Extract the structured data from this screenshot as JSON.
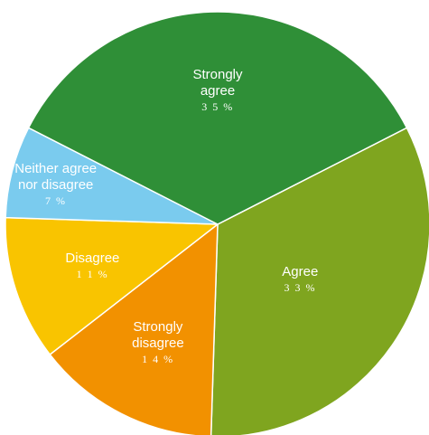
{
  "chart_data": {
    "type": "pie",
    "title": "",
    "start_angle_deg": -27,
    "direction": "clockwise",
    "slices": [
      {
        "key": "agree",
        "label_lines": [
          "Agree"
        ],
        "value": 33,
        "value_label": "3 3 %",
        "color": "#7fa51f"
      },
      {
        "key": "strongly-disagree",
        "label_lines": [
          "Strongly",
          "disagree"
        ],
        "value": 14,
        "value_label": "1 4 %",
        "color": "#f29100"
      },
      {
        "key": "disagree",
        "label_lines": [
          "Disagree"
        ],
        "value": 11,
        "value_label": "1 1 %",
        "color": "#f9c400"
      },
      {
        "key": "neither",
        "label_lines": [
          "Neither agree",
          "nor disagree"
        ],
        "value": 7,
        "value_label": "7 %",
        "color": "#7acbee"
      },
      {
        "key": "strongly-agree",
        "label_lines": [
          "Strongly",
          "agree"
        ],
        "value": 35,
        "value_label": "3 5 %",
        "color": "#2f8f37"
      }
    ]
  }
}
